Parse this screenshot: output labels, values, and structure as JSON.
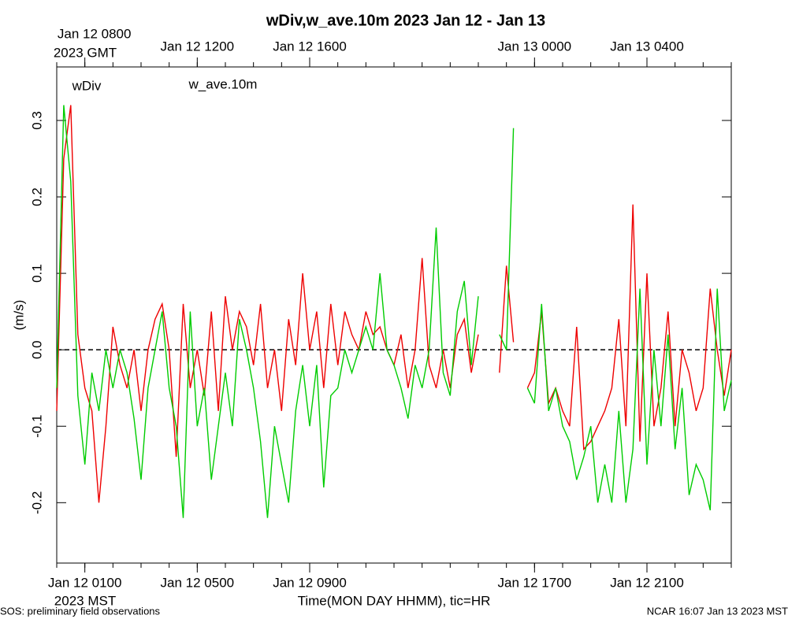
{
  "chart_data": {
    "type": "line",
    "title": "wDiv,w_ave.10m 2023 Jan 12 - Jan 13",
    "x_label": "Time(MON DAY HHMM), tic=HR",
    "y_label": "(m/s)",
    "x_tz_label": "2023 MST",
    "x2_tz_label": "2023 GMT",
    "footer_left": "SOS: preliminary field observations",
    "footer_right": "NCAR 16:07 Jan 13 2023 MST",
    "xlim": [
      0,
      24
    ],
    "ylim": [
      -0.279,
      0.37
    ],
    "xticks": [
      {
        "value": 1,
        "label": "Jan 12 0100"
      },
      {
        "value": 5,
        "label": "Jan 12 0500"
      },
      {
        "value": 9,
        "label": "Jan 12 0900"
      },
      {
        "value": 17,
        "label": "Jan 12 1700"
      },
      {
        "value": 21,
        "label": "Jan 12 2100"
      }
    ],
    "x2ticks": [
      {
        "value": 1,
        "label": "Jan 12 0800"
      },
      {
        "value": 5,
        "label": "Jan 12 1200"
      },
      {
        "value": 9,
        "label": "Jan 12 1600"
      },
      {
        "value": 17,
        "label": "Jan 13 0000"
      },
      {
        "value": 21,
        "label": "Jan 13 0400"
      }
    ],
    "xminorticks": [
      0,
      1,
      2,
      3,
      4,
      5,
      6,
      7,
      8,
      9,
      10,
      11,
      12,
      13,
      14,
      15,
      16,
      17,
      18,
      19,
      20,
      21,
      22,
      23,
      24
    ],
    "yticks": [
      -0.2,
      -0.1,
      {
        "value": 0,
        "label": "0.0"
      },
      0.1,
      0.2,
      0.3
    ],
    "hline": 0,
    "x": [
      0,
      0.25,
      0.5,
      0.75,
      1,
      1.25,
      1.5,
      1.75,
      2,
      2.25,
      2.5,
      2.75,
      3,
      3.25,
      3.5,
      3.75,
      4,
      4.25,
      4.5,
      4.75,
      5,
      5.25,
      5.5,
      5.75,
      6,
      6.25,
      6.5,
      6.75,
      7,
      7.25,
      7.5,
      7.75,
      8,
      8.25,
      8.5,
      8.75,
      9,
      9.25,
      9.5,
      9.75,
      10,
      10.25,
      10.5,
      10.75,
      11,
      11.25,
      11.5,
      11.75,
      12,
      12.25,
      12.5,
      12.75,
      13,
      13.25,
      13.5,
      13.75,
      14,
      14.25,
      14.5,
      14.75,
      15,
      15.25,
      15.5,
      15.75,
      16,
      16.25,
      16.5,
      16.75,
      17,
      17.25,
      17.5,
      17.75,
      18,
      18.25,
      18.5,
      18.75,
      19,
      19.25,
      19.5,
      19.75,
      20,
      20.25,
      20.5,
      20.75,
      21,
      21.25,
      21.5,
      21.75,
      22,
      22.25,
      22.5,
      22.75,
      23,
      23.25,
      23.5,
      23.75,
      24
    ],
    "series": [
      {
        "name": "wDiv",
        "color": "#ee0000",
        "values": [
          -0.08,
          0.25,
          0.32,
          0.02,
          -0.05,
          -0.08,
          -0.2,
          -0.1,
          0.03,
          -0.02,
          -0.05,
          0,
          -0.08,
          0,
          0.04,
          0.06,
          0,
          -0.14,
          0.06,
          -0.05,
          0,
          -0.06,
          0.05,
          -0.08,
          0.07,
          0,
          0.05,
          0.03,
          -0.02,
          0.06,
          -0.05,
          0,
          -0.08,
          0.04,
          -0.02,
          0.1,
          0,
          0.05,
          -0.05,
          0.06,
          -0.02,
          0.05,
          0.02,
          0,
          0.05,
          0.02,
          0.03,
          0,
          -0.02,
          0.02,
          -0.05,
          0,
          0.12,
          -0.02,
          -0.05,
          0,
          -0.05,
          0.02,
          0.04,
          -0.03,
          0.02,
          null,
          null,
          -0.03,
          0.11,
          0.01,
          null,
          -0.05,
          -0.03,
          0.05,
          -0.07,
          -0.05,
          -0.08,
          -0.1,
          0.03,
          -0.13,
          -0.12,
          -0.1,
          -0.08,
          -0.05,
          0.04,
          -0.1,
          0.19,
          -0.12,
          0.1,
          -0.1,
          -0.05,
          0.05,
          -0.1,
          0,
          -0.03,
          -0.08,
          -0.05,
          0.08,
          0,
          -0.06,
          0
        ]
      },
      {
        "name": "w_ave.10m",
        "color": "#00cc00",
        "values": [
          -0.05,
          0.32,
          0.22,
          -0.06,
          -0.15,
          -0.03,
          -0.08,
          0,
          -0.05,
          0,
          -0.03,
          -0.09,
          -0.17,
          -0.05,
          0,
          0.05,
          -0.05,
          -0.1,
          -0.22,
          0.05,
          -0.1,
          -0.05,
          -0.17,
          -0.1,
          -0.03,
          -0.1,
          0.04,
          0,
          -0.05,
          -0.12,
          -0.22,
          -0.1,
          -0.15,
          -0.2,
          -0.08,
          -0.02,
          -0.1,
          -0.02,
          -0.18,
          -0.06,
          -0.05,
          0,
          -0.03,
          0,
          0.03,
          0,
          0.1,
          0,
          -0.02,
          -0.05,
          -0.09,
          -0.02,
          -0.05,
          0,
          0.16,
          -0.03,
          -0.06,
          0.05,
          0.09,
          -0.02,
          0.07,
          null,
          null,
          0.02,
          0,
          0.29,
          null,
          -0.05,
          -0.07,
          0.06,
          -0.08,
          -0.05,
          -0.1,
          -0.12,
          -0.17,
          -0.14,
          -0.1,
          -0.2,
          -0.15,
          -0.2,
          -0.08,
          -0.2,
          -0.13,
          0.08,
          -0.15,
          0,
          -0.1,
          0.02,
          -0.13,
          -0.05,
          -0.19,
          -0.15,
          -0.17,
          -0.21,
          0.08,
          -0.08,
          -0.04
        ]
      }
    ]
  }
}
